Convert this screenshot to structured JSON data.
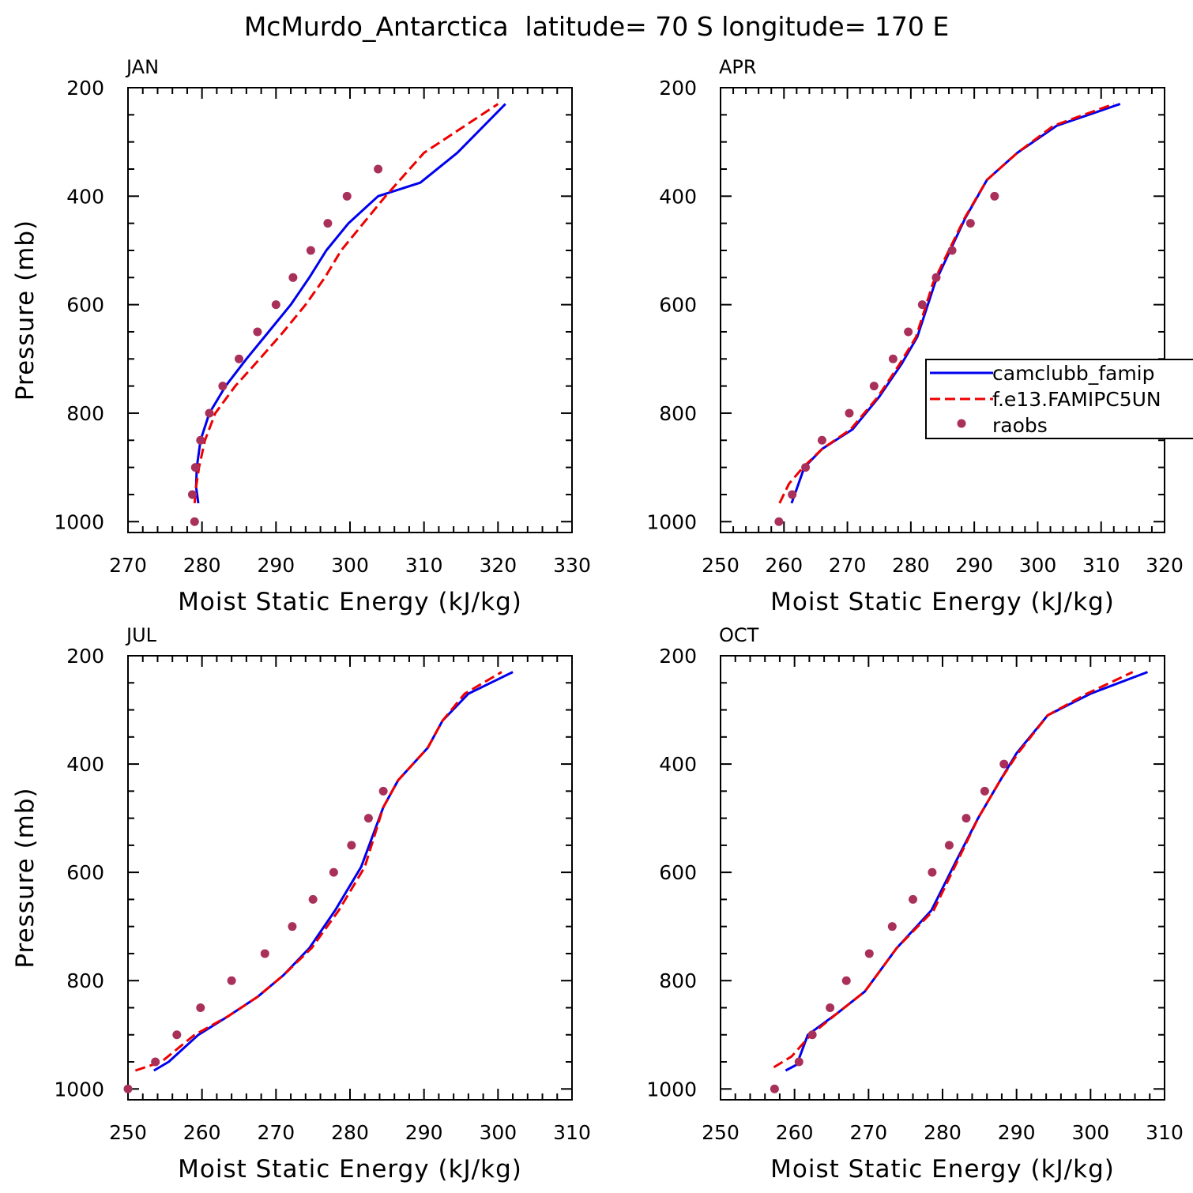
{
  "figure_title": "McMurdo_Antarctica  latitude= 70 S longitude= 170 E",
  "colors": {
    "camclubb": "#0000ee",
    "fe13": "#ee0000",
    "raobs": "#a8305a",
    "axis": "#000000"
  },
  "legend": {
    "entries": [
      {
        "label": "camclubb_famip",
        "style": "solid-line",
        "color": "#0000ee"
      },
      {
        "label": "f.e13.FAMIPC5UN",
        "style": "dashed-line",
        "color": "#ee0000"
      },
      {
        "label": "raobs",
        "style": "marker",
        "color": "#a8305a"
      }
    ]
  },
  "chart_data": [
    {
      "type": "line",
      "panel_label": "JAN",
      "xlabel": "Moist Static Energy (kJ/kg)",
      "ylabel": "Pressure (mb)",
      "xlim": [
        270,
        330
      ],
      "ylim": [
        1000,
        200
      ],
      "xticks": [
        270,
        280,
        290,
        300,
        310,
        320,
        330
      ],
      "yticks": [
        200,
        400,
        600,
        800,
        1000
      ],
      "series": [
        {
          "name": "camclubb_famip",
          "style": "solid",
          "x": [
            279.5,
            279.2,
            279.3,
            279.8,
            281.0,
            283.2,
            286.0,
            289.0,
            292.0,
            294.5,
            296.8,
            299.8,
            303.8,
            309.5,
            314.5,
            321.0
          ],
          "y": [
            966,
            936,
            900,
            850,
            800,
            750,
            700,
            650,
            600,
            550,
            500,
            450,
            400,
            375,
            320,
            230
          ]
        },
        {
          "name": "f.e13.FAMIPC5UN",
          "style": "dashed",
          "x": [
            279.0,
            279.2,
            279.6,
            280.4,
            281.8,
            284.5,
            287.8,
            291.0,
            294.0,
            296.6,
            298.8,
            301.8,
            304.8,
            310.0,
            315.0,
            320.0
          ],
          "y": [
            966,
            936,
            900,
            850,
            800,
            750,
            700,
            650,
            600,
            550,
            500,
            450,
            400,
            320,
            275,
            230
          ]
        },
        {
          "name": "raobs",
          "style": "markers",
          "x": [
            279.0,
            278.7,
            279.1,
            279.8,
            281.0,
            282.8,
            285.0,
            287.5,
            290.0,
            292.3,
            294.7,
            297.0,
            299.6,
            303.8
          ],
          "y": [
            1000,
            950,
            900,
            850,
            800,
            750,
            700,
            650,
            600,
            550,
            500,
            450,
            400,
            350
          ]
        }
      ]
    },
    {
      "type": "line",
      "panel_label": "APR",
      "xlabel": "Moist Static Energy (kJ/kg)",
      "ylabel": "Pressure (mb)",
      "xlim": [
        250,
        320
      ],
      "ylim": [
        1000,
        200
      ],
      "xticks": [
        250,
        260,
        270,
        280,
        290,
        300,
        310,
        320
      ],
      "yticks": [
        200,
        400,
        600,
        800,
        1000
      ],
      "series": [
        {
          "name": "camclubb_famip",
          "style": "solid",
          "x": [
            261.2,
            262.0,
            263.2,
            266.0,
            270.8,
            275.0,
            278.5,
            281.0,
            283.8,
            286.2,
            288.6,
            292.0,
            296.8,
            303.0,
            313.0
          ],
          "y": [
            966,
            940,
            900,
            866,
            830,
            770,
            710,
            660,
            560,
            500,
            440,
            370,
            320,
            270,
            230
          ]
        },
        {
          "name": "f.e13.FAMIPC5UN",
          "style": "dashed",
          "x": [
            259.3,
            260.8,
            263.0,
            266.0,
            270.5,
            274.8,
            278.2,
            280.8,
            283.5,
            286.0,
            288.5,
            292.0,
            296.8,
            302.5,
            312.0
          ],
          "y": [
            966,
            930,
            900,
            866,
            830,
            770,
            710,
            660,
            560,
            500,
            440,
            370,
            320,
            270,
            230
          ]
        },
        {
          "name": "raobs",
          "style": "markers",
          "x": [
            259.2,
            261.3,
            263.4,
            266.0,
            270.3,
            274.2,
            277.2,
            279.6,
            281.8,
            284.0,
            286.5,
            289.4,
            293.2
          ],
          "y": [
            1000,
            950,
            900,
            850,
            800,
            750,
            700,
            650,
            600,
            550,
            500,
            450,
            400
          ]
        }
      ]
    },
    {
      "type": "line",
      "panel_label": "JUL",
      "xlabel": "Moist Static Energy (kJ/kg)",
      "ylabel": "Pressure (mb)",
      "xlim": [
        250,
        310
      ],
      "ylim": [
        1000,
        200
      ],
      "xticks": [
        250,
        260,
        270,
        280,
        290,
        300,
        310
      ],
      "yticks": [
        200,
        400,
        600,
        800,
        1000
      ],
      "series": [
        {
          "name": "camclubb_famip",
          "style": "solid",
          "x": [
            253.5,
            255.5,
            259.5,
            263.5,
            267.5,
            271.0,
            274.5,
            278.0,
            281.5,
            284.5,
            286.5,
            288.5,
            290.5,
            292.5,
            296.0,
            302.0
          ],
          "y": [
            966,
            950,
            900,
            866,
            830,
            790,
            740,
            670,
            590,
            480,
            430,
            400,
            370,
            320,
            270,
            230
          ]
        },
        {
          "name": "f.e13.FAMIPC5UN",
          "style": "dashed",
          "x": [
            251.0,
            254.5,
            259.0,
            263.5,
            267.5,
            271.0,
            274.8,
            278.5,
            282.0,
            284.5,
            286.5,
            288.5,
            290.5,
            292.5,
            295.5,
            300.5
          ],
          "y": [
            966,
            950,
            900,
            866,
            830,
            790,
            740,
            670,
            590,
            480,
            430,
            400,
            370,
            320,
            270,
            230
          ]
        },
        {
          "name": "raobs",
          "style": "markers",
          "x": [
            250.0,
            253.7,
            256.6,
            259.8,
            264.0,
            268.5,
            272.2,
            275.0,
            277.8,
            280.2,
            282.5,
            284.5
          ],
          "y": [
            1000,
            950,
            900,
            850,
            800,
            750,
            700,
            650,
            600,
            550,
            500,
            450
          ]
        }
      ]
    },
    {
      "type": "line",
      "panel_label": "OCT",
      "xlabel": "Moist Static Energy (kJ/kg)",
      "ylabel": "Pressure (mb)",
      "xlim": [
        250,
        310
      ],
      "ylim": [
        1000,
        200
      ],
      "xticks": [
        250,
        260,
        270,
        280,
        290,
        300,
        310
      ],
      "yticks": [
        200,
        400,
        600,
        800,
        1000
      ],
      "series": [
        {
          "name": "camclubb_famip",
          "style": "solid",
          "x": [
            258.8,
            260.3,
            261.8,
            265.8,
            269.5,
            273.8,
            278.5,
            281.8,
            284.8,
            287.8,
            290.0,
            294.2,
            300.0,
            307.7
          ],
          "y": [
            966,
            955,
            900,
            860,
            820,
            740,
            670,
            580,
            500,
            430,
            380,
            310,
            270,
            230
          ]
        },
        {
          "name": "f.e13.FAMIPC5UN",
          "style": "dashed",
          "x": [
            257.2,
            259.6,
            262.2,
            265.8,
            269.5,
            273.8,
            278.8,
            282.0,
            284.8,
            287.8,
            290.2,
            294.2,
            299.5,
            305.7
          ],
          "y": [
            960,
            940,
            900,
            860,
            820,
            740,
            670,
            580,
            500,
            430,
            380,
            310,
            270,
            230
          ]
        },
        {
          "name": "raobs",
          "style": "markers",
          "x": [
            257.3,
            260.6,
            262.4,
            264.8,
            267.0,
            270.1,
            273.2,
            276.0,
            278.6,
            280.9,
            283.2,
            285.7,
            288.3
          ],
          "y": [
            1000,
            950,
            900,
            850,
            800,
            750,
            700,
            650,
            600,
            550,
            500,
            450,
            400
          ]
        }
      ]
    }
  ]
}
